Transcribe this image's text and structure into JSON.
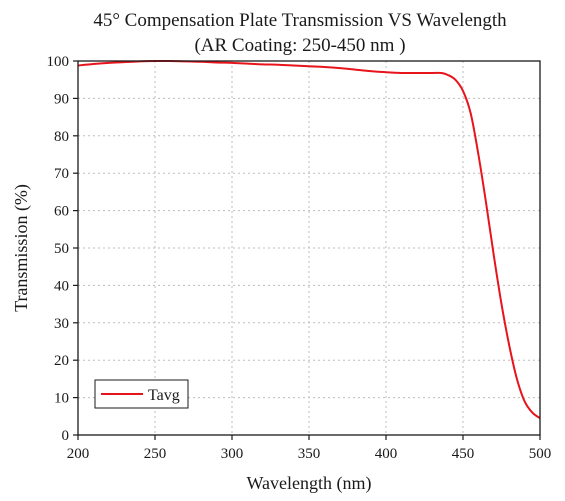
{
  "chart_data": {
    "type": "line",
    "title": "45° Compensation Plate Transmission VS Wavelength",
    "subtitle": "(AR Coating: 250-450 nm )",
    "xlabel": "Wavelength (nm)",
    "ylabel": "Transmission (%)",
    "xlim": [
      200,
      500
    ],
    "ylim": [
      0,
      100
    ],
    "xticks": [
      200,
      250,
      300,
      350,
      400,
      450,
      500
    ],
    "yticks": [
      0,
      10,
      20,
      30,
      40,
      50,
      60,
      70,
      80,
      90,
      100
    ],
    "grid": true,
    "legend_position": "bottom-left",
    "series": [
      {
        "name": "Tavg",
        "color": "#e8141b",
        "x": [
          200,
          210,
          220,
          230,
          240,
          250,
          260,
          270,
          280,
          290,
          300,
          310,
          320,
          330,
          340,
          350,
          360,
          370,
          380,
          390,
          400,
          410,
          420,
          430,
          436,
          440,
          445,
          450,
          455,
          460,
          465,
          470,
          475,
          480,
          485,
          490,
          495,
          500
        ],
        "y": [
          98.8,
          99.2,
          99.5,
          99.7,
          99.9,
          100,
          100,
          99.9,
          99.8,
          99.6,
          99.5,
          99.3,
          99.1,
          99.0,
          98.8,
          98.6,
          98.4,
          98.1,
          97.7,
          97.3,
          97.0,
          96.8,
          96.8,
          96.8,
          96.8,
          96.3,
          95.0,
          92.0,
          86.0,
          75.0,
          62.0,
          48.0,
          35.0,
          24.0,
          15.0,
          9.0,
          6.0,
          4.5
        ]
      }
    ]
  }
}
